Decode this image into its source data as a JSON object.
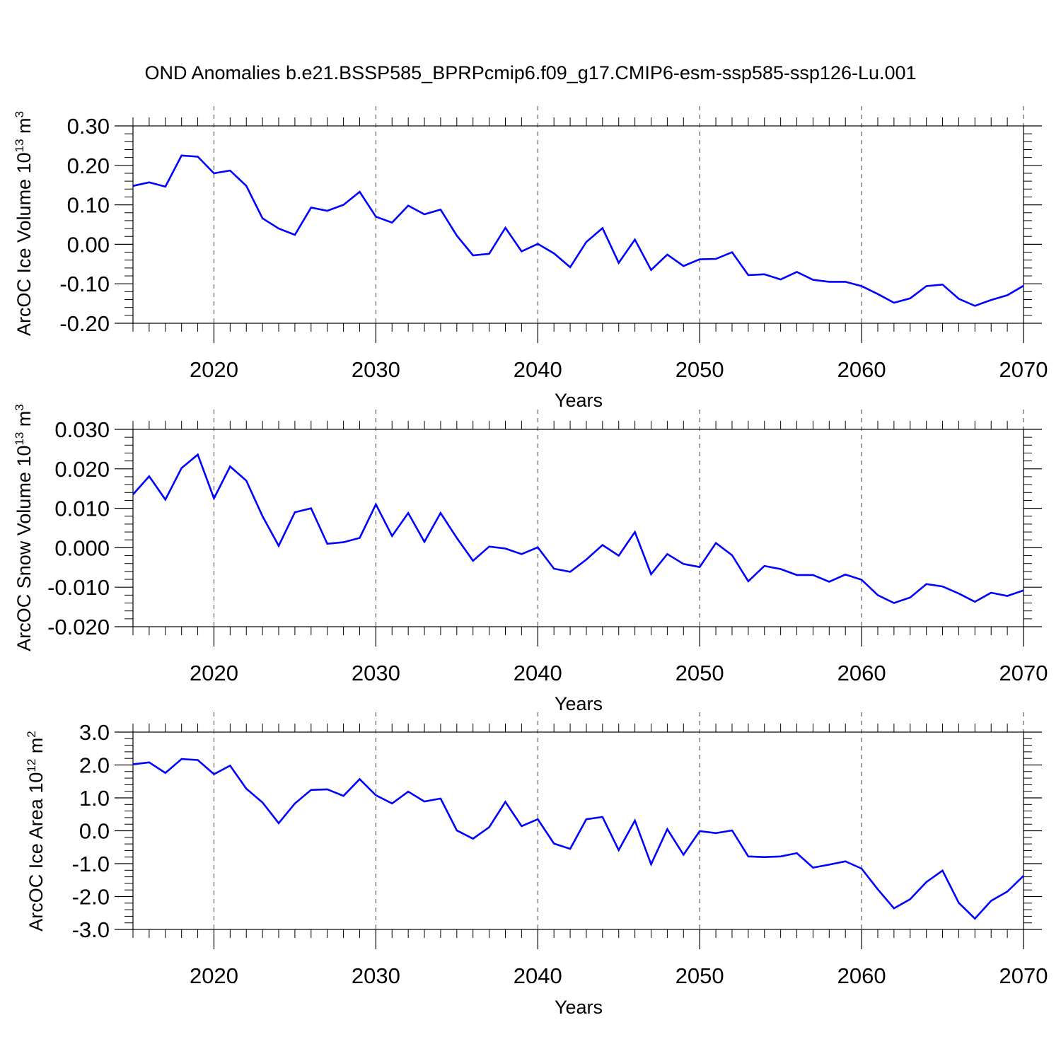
{
  "title": "OND Anomalies b.e21.BSSP585_BPRPcmip6.f09_g17.CMIP6-esm-ssp585-ssp126-Lu.001",
  "colors": {
    "line": "#0000ff",
    "axis": "#000000",
    "background": "#ffffff"
  },
  "chart_data": [
    {
      "type": "line",
      "ylabel_main": "ArcOC Ice Volume 10",
      "ylabel_sup": "13",
      "ylabel_unit": " m",
      "ylabel_unit_sup": "3",
      "xlabel": "Years",
      "xlim": [
        2015,
        2070
      ],
      "ylim": [
        -0.2,
        0.3
      ],
      "yticks": [
        -0.2,
        -0.1,
        0.0,
        0.1,
        0.2,
        0.3
      ],
      "ytick_labels": [
        "-0.20",
        "-0.10",
        "0.00",
        "0.10",
        "0.20",
        "0.30"
      ],
      "xticks": [
        2020,
        2030,
        2040,
        2050,
        2060,
        2070
      ],
      "xtick_labels": [
        "2020",
        "2030",
        "2040",
        "2050",
        "2060",
        "2070"
      ],
      "grid": "vertical dashed at major x ticks",
      "x_start": 2015,
      "series": [
        {
          "name": "Ice Volume",
          "values": [
            0.148,
            0.157,
            0.146,
            0.225,
            0.222,
            0.18,
            0.187,
            0.148,
            0.066,
            0.04,
            0.024,
            0.093,
            0.085,
            0.1,
            0.133,
            0.07,
            0.055,
            0.098,
            0.076,
            0.088,
            0.022,
            -0.028,
            -0.024,
            0.042,
            -0.018,
            0.001,
            -0.023,
            -0.058,
            0.006,
            0.041,
            -0.047,
            0.012,
            -0.065,
            -0.026,
            -0.055,
            -0.038,
            -0.037,
            -0.02,
            -0.078,
            -0.076,
            -0.089,
            -0.07,
            -0.09,
            -0.095,
            -0.095,
            -0.106,
            -0.126,
            -0.148,
            -0.137,
            -0.106,
            -0.102,
            -0.138,
            -0.156,
            -0.141,
            -0.129,
            -0.105
          ]
        }
      ]
    },
    {
      "type": "line",
      "ylabel_main": "ArcOC Snow Volume 10",
      "ylabel_sup": "13",
      "ylabel_unit": " m",
      "ylabel_unit_sup": "3",
      "xlabel": "Years",
      "xlim": [
        2015,
        2070
      ],
      "ylim": [
        -0.02,
        0.03
      ],
      "yticks": [
        -0.02,
        -0.01,
        0.0,
        0.01,
        0.02,
        0.03
      ],
      "ytick_labels": [
        "-0.020",
        "-0.010",
        "0.000",
        "0.010",
        "0.020",
        "0.030"
      ],
      "xticks": [
        2020,
        2030,
        2040,
        2050,
        2060,
        2070
      ],
      "xtick_labels": [
        "2020",
        "2030",
        "2040",
        "2050",
        "2060",
        "2070"
      ],
      "grid": "vertical dashed at major x ticks",
      "x_start": 2015,
      "series": [
        {
          "name": "Snow Volume",
          "values": [
            0.0135,
            0.0181,
            0.0122,
            0.0202,
            0.0236,
            0.0125,
            0.0206,
            0.017,
            0.008,
            0.0005,
            0.009,
            0.01,
            0.001,
            0.0014,
            0.0025,
            0.011,
            0.003,
            0.0088,
            0.0015,
            0.0088,
            0.0025,
            -0.0033,
            0.0003,
            -0.0002,
            -0.0016,
            0.0001,
            -0.0053,
            -0.0061,
            -0.003,
            0.0007,
            -0.002,
            0.004,
            -0.0067,
            -0.0016,
            -0.0041,
            -0.0049,
            0.0012,
            -0.0019,
            -0.0085,
            -0.0046,
            -0.0054,
            -0.0069,
            -0.0069,
            -0.0086,
            -0.0068,
            -0.0081,
            -0.012,
            -0.014,
            -0.0126,
            -0.0092,
            -0.0098,
            -0.0116,
            -0.0137,
            -0.0114,
            -0.0122,
            -0.0108
          ]
        }
      ]
    },
    {
      "type": "line",
      "ylabel_main": "ArcOC Ice Area 10",
      "ylabel_sup": "12",
      "ylabel_unit": " m",
      "ylabel_unit_sup": "2",
      "xlabel": "Years",
      "xlim": [
        2015,
        2070
      ],
      "ylim": [
        -3.0,
        3.0
      ],
      "yticks": [
        -3.0,
        -2.0,
        -1.0,
        0.0,
        1.0,
        2.0,
        3.0
      ],
      "ytick_labels": [
        "-3.0",
        "-2.0",
        "-1.0",
        "0.0",
        "1.0",
        "2.0",
        "3.0"
      ],
      "xticks": [
        2020,
        2030,
        2040,
        2050,
        2060,
        2070
      ],
      "xtick_labels": [
        "2020",
        "2030",
        "2040",
        "2050",
        "2060",
        "2070"
      ],
      "grid": "vertical dashed at major x ticks",
      "x_start": 2015,
      "series": [
        {
          "name": "Ice Area",
          "values": [
            2.02,
            2.08,
            1.76,
            2.18,
            2.15,
            1.72,
            1.98,
            1.28,
            0.86,
            0.23,
            0.83,
            1.24,
            1.26,
            1.06,
            1.57,
            1.08,
            0.83,
            1.19,
            0.89,
            0.98,
            0.01,
            -0.24,
            0.11,
            0.88,
            0.14,
            0.35,
            -0.39,
            -0.55,
            0.35,
            0.42,
            -0.59,
            0.31,
            -1.02,
            0.05,
            -0.73,
            -0.01,
            -0.07,
            0.01,
            -0.78,
            -0.8,
            -0.78,
            -0.68,
            -1.12,
            -1.03,
            -0.93,
            -1.15,
            -1.78,
            -2.36,
            -2.08,
            -1.56,
            -1.21,
            -2.19,
            -2.67,
            -2.13,
            -1.85,
            -1.37
          ]
        }
      ]
    }
  ]
}
